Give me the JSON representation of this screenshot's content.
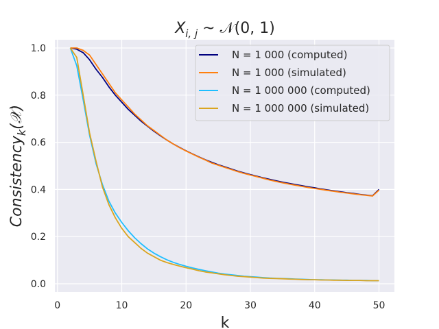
{
  "chart_data": {
    "type": "line",
    "title": "X_{i,j} ~ 𝒩(0,1)",
    "title_parts": {
      "base": "X",
      "sub": "i, j",
      "rest": " ~ 𝒩(0, 1)"
    },
    "xlabel": "k",
    "ylabel": "Consistency_k(𝒳)",
    "ylabel_parts": {
      "base": "Consistency",
      "sub": "k",
      "rest": "(𝒳)"
    },
    "xlim": [
      -0.4,
      52.4
    ],
    "ylim": [
      -0.035,
      1.035
    ],
    "xticks": [
      0,
      10,
      20,
      30,
      40,
      50
    ],
    "xtick_labels": [
      "0",
      "10",
      "20",
      "30",
      "40",
      "50"
    ],
    "yticks": [
      0.0,
      0.2,
      0.4,
      0.6,
      0.8,
      1.0
    ],
    "ytick_labels": [
      "0.0",
      "0.2",
      "0.4",
      "0.6",
      "0.8",
      "1.0"
    ],
    "grid": true,
    "legend_position": "top-right",
    "x": [
      2,
      3,
      4,
      5,
      6,
      7,
      8,
      9,
      10,
      11,
      12,
      13,
      14,
      15,
      16,
      17,
      18,
      19,
      20,
      21,
      22,
      23,
      24,
      25,
      26,
      27,
      28,
      29,
      30,
      31,
      32,
      33,
      34,
      35,
      36,
      37,
      38,
      39,
      40,
      41,
      42,
      43,
      44,
      45,
      46,
      47,
      48,
      49,
      50
    ],
    "series": [
      {
        "name": "N = 1 000 (computed)",
        "color": "#00007f",
        "values": [
          1.0,
          0.995,
          0.98,
          0.95,
          0.91,
          0.875,
          0.835,
          0.8,
          0.77,
          0.74,
          0.715,
          0.69,
          0.668,
          0.647,
          0.628,
          0.61,
          0.593,
          0.578,
          0.564,
          0.551,
          0.538,
          0.526,
          0.515,
          0.505,
          0.496,
          0.487,
          0.478,
          0.47,
          0.463,
          0.456,
          0.449,
          0.443,
          0.437,
          0.431,
          0.426,
          0.421,
          0.416,
          0.411,
          0.407,
          0.402,
          0.398,
          0.394,
          0.39,
          0.386,
          0.383,
          0.379,
          0.376,
          0.373,
          0.4
        ]
      },
      {
        "name": "N = 1 000 (simulated)",
        "color": "#ff7f0e",
        "values": [
          1.0,
          1.0,
          0.99,
          0.97,
          0.93,
          0.89,
          0.85,
          0.81,
          0.78,
          0.75,
          0.72,
          0.695,
          0.67,
          0.65,
          0.63,
          0.61,
          0.593,
          0.577,
          0.563,
          0.55,
          0.537,
          0.525,
          0.512,
          0.503,
          0.494,
          0.485,
          0.476,
          0.468,
          0.461,
          0.454,
          0.447,
          0.44,
          0.434,
          0.428,
          0.423,
          0.418,
          0.413,
          0.408,
          0.404,
          0.4,
          0.396,
          0.392,
          0.388,
          0.385,
          0.381,
          0.378,
          0.375,
          0.372,
          0.397
        ]
      },
      {
        "name": "N = 1 000 000 (computed)",
        "color": "#1ebeff",
        "values": [
          1.0,
          0.925,
          0.78,
          0.63,
          0.51,
          0.42,
          0.35,
          0.3,
          0.26,
          0.225,
          0.195,
          0.17,
          0.148,
          0.13,
          0.115,
          0.102,
          0.091,
          0.082,
          0.074,
          0.067,
          0.061,
          0.055,
          0.05,
          0.045,
          0.041,
          0.038,
          0.035,
          0.032,
          0.03,
          0.028,
          0.026,
          0.024,
          0.023,
          0.022,
          0.021,
          0.02,
          0.019,
          0.018,
          0.017,
          0.017,
          0.016,
          0.016,
          0.015,
          0.015,
          0.014,
          0.014,
          0.014,
          0.013,
          0.013
        ]
      },
      {
        "name": "N = 1 000 000 (simulated)",
        "color": "#daa520",
        "values": [
          1.0,
          0.96,
          0.8,
          0.64,
          0.52,
          0.41,
          0.335,
          0.28,
          0.235,
          0.2,
          0.175,
          0.15,
          0.13,
          0.115,
          0.1,
          0.09,
          0.082,
          0.075,
          0.068,
          0.062,
          0.055,
          0.05,
          0.046,
          0.042,
          0.038,
          0.035,
          0.032,
          0.03,
          0.028,
          0.026,
          0.024,
          0.023,
          0.022,
          0.021,
          0.02,
          0.019,
          0.018,
          0.017,
          0.017,
          0.016,
          0.016,
          0.015,
          0.015,
          0.014,
          0.014,
          0.014,
          0.013,
          0.013,
          0.013
        ]
      }
    ]
  }
}
